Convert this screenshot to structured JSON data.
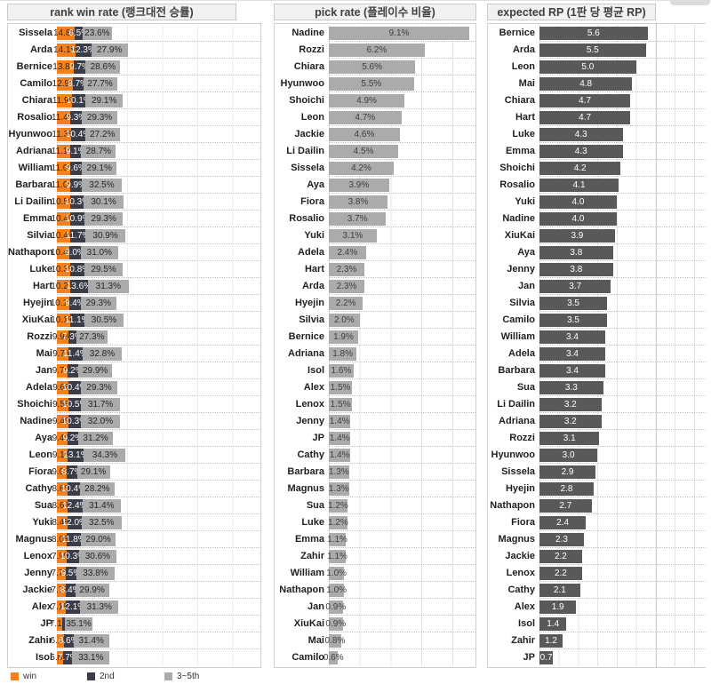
{
  "chart_data": [
    {
      "id": "rank-win-rate",
      "type": "bar",
      "subtype": "stacked-horizontal",
      "title": "rank win rate (랭크대전 승률)",
      "axis_max": 58,
      "grid_step": 10,
      "legend_position": "bottom",
      "legend": [
        {
          "label": "win",
          "color": "#F4811E"
        },
        {
          "label": "2nd",
          "color": "#3A3D48"
        },
        {
          "label": "3~5th",
          "color": "#ABABAB"
        }
      ],
      "series_names": [
        "win",
        "2nd",
        "3~5th"
      ],
      "rows": [
        {
          "name": "Sissela",
          "values": [
            14.8,
            6.5,
            23.6
          ],
          "labels": [
            "14.8%",
            "6.5%",
            "23.6%"
          ]
        },
        {
          "name": "Arda",
          "values": [
            14.1,
            12.3,
            27.9
          ],
          "labels": [
            "14.1%",
            "12.3%",
            "27.9%"
          ]
        },
        {
          "name": "Bernice",
          "values": [
            13.8,
            9.7,
            28.6
          ],
          "labels": [
            "13.8%",
            "9.7%",
            "28.6%"
          ]
        },
        {
          "name": "Camilo",
          "values": [
            12.9,
            8.7,
            27.7
          ],
          "labels": [
            "12.9%",
            "8.7%",
            "27.7%"
          ]
        },
        {
          "name": "Chiara",
          "values": [
            11.9,
            10.1,
            29.1
          ],
          "labels": [
            "11.9%",
            "10.1%",
            "29.1%"
          ]
        },
        {
          "name": "Rosalio",
          "values": [
            11.4,
            9.3,
            29.3
          ],
          "labels": [
            "11.4%",
            "9.3%",
            "29.3%"
          ]
        },
        {
          "name": "Hyunwoo",
          "values": [
            11.3,
            10.4,
            27.2
          ],
          "labels": [
            "11.3%",
            "10.4%",
            "27.2%"
          ]
        },
        {
          "name": "Adriana",
          "values": [
            11.1,
            9.1,
            28.7
          ],
          "labels": [
            "11.1%",
            "9.1%",
            "28.7%"
          ]
        },
        {
          "name": "William",
          "values": [
            11.0,
            9.6,
            29.1
          ],
          "labels": [
            "11.0%",
            "9.6%",
            "29.1%"
          ]
        },
        {
          "name": "Barbara",
          "values": [
            11.0,
            9.9,
            32.5
          ],
          "labels": [
            "11.0%",
            "9.9%",
            "32.5%"
          ]
        },
        {
          "name": "Li Dailin",
          "values": [
            10.5,
            10.3,
            30.1
          ],
          "labels": [
            "10.5%",
            "10.3%",
            "30.1%"
          ]
        },
        {
          "name": "Emma",
          "values": [
            10.4,
            10.9,
            29.3
          ],
          "labels": [
            "10.4%",
            "10.9%",
            "29.3%"
          ]
        },
        {
          "name": "Silvia",
          "values": [
            10.4,
            11.7,
            30.9
          ],
          "labels": [
            "10.4%",
            "11.7%",
            "30.9%"
          ]
        },
        {
          "name": "Nathapon",
          "values": [
            10.4,
            9.0,
            31.0
          ],
          "labels": [
            "10.4%",
            "9.0%",
            "31.0%"
          ]
        },
        {
          "name": "Luke",
          "values": [
            10.3,
            10.8,
            29.5
          ],
          "labels": [
            "10.3%",
            "10.8%",
            "29.5%"
          ]
        },
        {
          "name": "Hart",
          "values": [
            10.2,
            13.6,
            31.3
          ],
          "labels": [
            "10.2%",
            "13.6%",
            "31.3%"
          ]
        },
        {
          "name": "Hyejin",
          "values": [
            10.1,
            9.4,
            29.3
          ],
          "labels": [
            "10.1%",
            "9.4%",
            "29.3%"
          ]
        },
        {
          "name": "XiuKai",
          "values": [
            10.1,
            11.1,
            30.5
          ],
          "labels": [
            "10.1%",
            "11.1%",
            "30.5%"
          ]
        },
        {
          "name": "Rozzi",
          "values": [
            9.9,
            7.3,
            27.3
          ],
          "labels": [
            "9.9%",
            "7.3%",
            "27.3%"
          ]
        },
        {
          "name": "Mai",
          "values": [
            9.7,
            11.4,
            32.8
          ],
          "labels": [
            "9.7%",
            "11.4%",
            "32.8%"
          ]
        },
        {
          "name": "Jan",
          "values": [
            9.7,
            9.2,
            29.9
          ],
          "labels": [
            "9.7%",
            "9.2%",
            "29.9%"
          ]
        },
        {
          "name": "Adela",
          "values": [
            9.6,
            10.4,
            29.3
          ],
          "labels": [
            "9.6%",
            "10.4%",
            "29.3%"
          ]
        },
        {
          "name": "Shoichi",
          "values": [
            9.5,
            10.5,
            31.7
          ],
          "labels": [
            "9.5%",
            "10.5%",
            "31.7%"
          ]
        },
        {
          "name": "Nadine",
          "values": [
            9.4,
            10.3,
            32.0
          ],
          "labels": [
            "9.4%",
            "10.3%",
            "32.0%"
          ]
        },
        {
          "name": "Aya",
          "values": [
            9.4,
            9.2,
            31.2
          ],
          "labels": [
            "9.4%",
            "9.2%",
            "31.2%"
          ]
        },
        {
          "name": "Leon",
          "values": [
            9.1,
            13.1,
            34.3
          ],
          "labels": [
            "9.1%",
            "13.1%",
            "34.3%"
          ]
        },
        {
          "name": "Fiora",
          "values": [
            9.0,
            8.7,
            29.1
          ],
          "labels": [
            "9.0%",
            "8.7%",
            "29.1%"
          ]
        },
        {
          "name": "Cathy",
          "values": [
            8.6,
            10.4,
            28.2
          ],
          "labels": [
            "8.6%",
            "10.4%",
            "28.2%"
          ]
        },
        {
          "name": "Sua",
          "values": [
            8.6,
            12.4,
            31.4
          ],
          "labels": [
            "8.6%",
            "12.4%",
            "31.4%"
          ]
        },
        {
          "name": "Yuki",
          "values": [
            8.4,
            12.0,
            32.5
          ],
          "labels": [
            "8.4%",
            "12.0%",
            "32.5%"
          ]
        },
        {
          "name": "Magnus",
          "values": [
            8.0,
            11.8,
            29.0
          ],
          "labels": [
            "8.0%",
            "11.8%",
            "29.0%"
          ]
        },
        {
          "name": "Lenox",
          "values": [
            7.9,
            10.3,
            30.6
          ],
          "labels": [
            "7.9%",
            "10.3%",
            "30.6%"
          ]
        },
        {
          "name": "Jenny",
          "values": [
            7.7,
            9.5,
            33.8
          ],
          "labels": [
            "7.7%",
            "9.5%",
            "33.8%"
          ]
        },
        {
          "name": "Jackie",
          "values": [
            7.7,
            8.4,
            29.9
          ],
          "labels": [
            "7.7%",
            "8.4%",
            "29.9%"
          ]
        },
        {
          "name": "Alex",
          "values": [
            7.1,
            12.1,
            31.3
          ],
          "labels": [
            "7.1%",
            "12.1%",
            "31.3%"
          ]
        },
        {
          "name": "JP",
          "values": [
            7.1,
            3.2,
            35.1
          ],
          "labels": [
            "7.1%",
            "",
            "35.1%"
          ]
        },
        {
          "name": "Zahir",
          "values": [
            6.1,
            8.6,
            31.4
          ],
          "labels": [
            "6.1%",
            "8.6%",
            "31.4%"
          ]
        },
        {
          "name": "Isol",
          "values": [
            5.8,
            7.7,
            33.1
          ],
          "labels": [
            "5.8%",
            "7.7%",
            "33.1%"
          ]
        }
      ]
    },
    {
      "id": "pick-rate",
      "type": "bar",
      "subtype": "horizontal",
      "title": "pick rate (플레이수 비율)",
      "axis_max": 9.5,
      "grid_step": 2,
      "bar_color": "#ABABAB",
      "rows": [
        {
          "name": "Nadine",
          "value": 9.1,
          "label": "9.1%"
        },
        {
          "name": "Rozzi",
          "value": 6.2,
          "label": "6.2%"
        },
        {
          "name": "Chiara",
          "value": 5.6,
          "label": "5.6%"
        },
        {
          "name": "Hyunwoo",
          "value": 5.5,
          "label": "5.5%"
        },
        {
          "name": "Shoichi",
          "value": 4.9,
          "label": "4.9%"
        },
        {
          "name": "Leon",
          "value": 4.7,
          "label": "4.7%"
        },
        {
          "name": "Jackie",
          "value": 4.6,
          "label": "4.6%"
        },
        {
          "name": "Li Dailin",
          "value": 4.5,
          "label": "4.5%"
        },
        {
          "name": "Sissela",
          "value": 4.2,
          "label": "4.2%"
        },
        {
          "name": "Aya",
          "value": 3.9,
          "label": "3.9%"
        },
        {
          "name": "Fiora",
          "value": 3.8,
          "label": "3.8%"
        },
        {
          "name": "Rosalio",
          "value": 3.7,
          "label": "3.7%"
        },
        {
          "name": "Yuki",
          "value": 3.1,
          "label": "3.1%"
        },
        {
          "name": "Adela",
          "value": 2.4,
          "label": "2.4%"
        },
        {
          "name": "Hart",
          "value": 2.3,
          "label": "2.3%"
        },
        {
          "name": "Arda",
          "value": 2.3,
          "label": "2.3%"
        },
        {
          "name": "Hyejin",
          "value": 2.2,
          "label": "2.2%"
        },
        {
          "name": "Silvia",
          "value": 2.0,
          "label": "2.0%"
        },
        {
          "name": "Bernice",
          "value": 1.9,
          "label": "1.9%"
        },
        {
          "name": "Adriana",
          "value": 1.8,
          "label": "1.8%"
        },
        {
          "name": "Isol",
          "value": 1.6,
          "label": "1.6%"
        },
        {
          "name": "Alex",
          "value": 1.5,
          "label": "1.5%"
        },
        {
          "name": "Lenox",
          "value": 1.5,
          "label": "1.5%"
        },
        {
          "name": "Jenny",
          "value": 1.4,
          "label": "1.4%"
        },
        {
          "name": "JP",
          "value": 1.4,
          "label": "1.4%"
        },
        {
          "name": "Cathy",
          "value": 1.4,
          "label": "1.4%"
        },
        {
          "name": "Barbara",
          "value": 1.3,
          "label": "1.3%"
        },
        {
          "name": "Magnus",
          "value": 1.3,
          "label": "1.3%"
        },
        {
          "name": "Sua",
          "value": 1.2,
          "label": "1.2%"
        },
        {
          "name": "Luke",
          "value": 1.2,
          "label": "1.2%"
        },
        {
          "name": "Emma",
          "value": 1.1,
          "label": "1.1%"
        },
        {
          "name": "Zahir",
          "value": 1.1,
          "label": "1.1%"
        },
        {
          "name": "William",
          "value": 1.0,
          "label": "1.0%"
        },
        {
          "name": "Nathapon",
          "value": 1.0,
          "label": "1.0%"
        },
        {
          "name": "Jan",
          "value": 0.9,
          "label": "0.9%"
        },
        {
          "name": "XiuKai",
          "value": 0.9,
          "label": "0.9%"
        },
        {
          "name": "Mai",
          "value": 0.8,
          "label": "0.8%"
        },
        {
          "name": "Camilo",
          "value": 0.6,
          "label": "0.6%"
        }
      ]
    },
    {
      "id": "expected-rp",
      "type": "bar",
      "subtype": "horizontal",
      "title": "expected RP (1판 당 평균 RP)",
      "axis_max": 8.6,
      "grid_step": 1,
      "axis_line_value": 6,
      "bar_color": "#595959",
      "rows": [
        {
          "name": "Bernice",
          "value": 5.6,
          "label": "5.6"
        },
        {
          "name": "Arda",
          "value": 5.5,
          "label": "5.5"
        },
        {
          "name": "Leon",
          "value": 5.0,
          "label": "5.0"
        },
        {
          "name": "Mai",
          "value": 4.8,
          "label": "4.8"
        },
        {
          "name": "Chiara",
          "value": 4.7,
          "label": "4.7"
        },
        {
          "name": "Hart",
          "value": 4.7,
          "label": "4.7"
        },
        {
          "name": "Luke",
          "value": 4.3,
          "label": "4.3"
        },
        {
          "name": "Emma",
          "value": 4.3,
          "label": "4.3"
        },
        {
          "name": "Shoichi",
          "value": 4.2,
          "label": "4.2"
        },
        {
          "name": "Rosalio",
          "value": 4.1,
          "label": "4.1"
        },
        {
          "name": "Yuki",
          "value": 4.0,
          "label": "4.0"
        },
        {
          "name": "Nadine",
          "value": 4.0,
          "label": "4.0"
        },
        {
          "name": "XiuKai",
          "value": 3.9,
          "label": "3.9"
        },
        {
          "name": "Aya",
          "value": 3.8,
          "label": "3.8"
        },
        {
          "name": "Jenny",
          "value": 3.8,
          "label": "3.8"
        },
        {
          "name": "Jan",
          "value": 3.7,
          "label": "3.7"
        },
        {
          "name": "Silvia",
          "value": 3.5,
          "label": "3.5"
        },
        {
          "name": "Camilo",
          "value": 3.5,
          "label": "3.5"
        },
        {
          "name": "William",
          "value": 3.4,
          "label": "3.4"
        },
        {
          "name": "Adela",
          "value": 3.4,
          "label": "3.4"
        },
        {
          "name": "Barbara",
          "value": 3.4,
          "label": "3.4"
        },
        {
          "name": "Sua",
          "value": 3.3,
          "label": "3.3"
        },
        {
          "name": "Li Dailin",
          "value": 3.2,
          "label": "3.2"
        },
        {
          "name": "Adriana",
          "value": 3.2,
          "label": "3.2"
        },
        {
          "name": "Rozzi",
          "value": 3.1,
          "label": "3.1"
        },
        {
          "name": "Hyunwoo",
          "value": 3.0,
          "label": "3.0"
        },
        {
          "name": "Sissela",
          "value": 2.9,
          "label": "2.9"
        },
        {
          "name": "Hyejin",
          "value": 2.8,
          "label": "2.8"
        },
        {
          "name": "Nathapon",
          "value": 2.7,
          "label": "2.7"
        },
        {
          "name": "Fiora",
          "value": 2.4,
          "label": "2.4"
        },
        {
          "name": "Magnus",
          "value": 2.3,
          "label": "2.3"
        },
        {
          "name": "Jackie",
          "value": 2.2,
          "label": "2.2"
        },
        {
          "name": "Lenox",
          "value": 2.2,
          "label": "2.2"
        },
        {
          "name": "Cathy",
          "value": 2.1,
          "label": "2.1"
        },
        {
          "name": "Alex",
          "value": 1.9,
          "label": "1.9"
        },
        {
          "name": "Isol",
          "value": 1.4,
          "label": "1.4"
        },
        {
          "name": "Zahir",
          "value": 1.2,
          "label": "1.2"
        },
        {
          "name": "JP",
          "value": 0.7,
          "label": "0.7"
        }
      ]
    }
  ]
}
